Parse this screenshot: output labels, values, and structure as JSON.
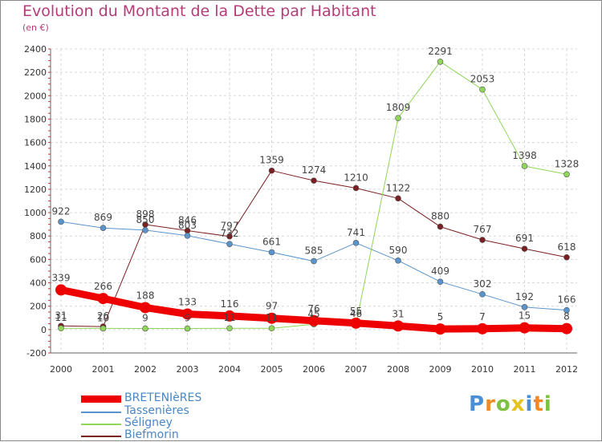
{
  "title": "Evolution du Montant de la Dette par Habitant",
  "subtitle": "(en €)",
  "logo": {
    "text": "Proxiti",
    "letters": [
      "P",
      "r",
      "o",
      "x",
      "i",
      "t",
      "i"
    ],
    "colors": [
      "#4a8fd6",
      "#f08a24",
      "#7cc142",
      "#e6c21e",
      "#4a8fd6",
      "#f08a24",
      "#7cc142"
    ]
  },
  "chart_data": {
    "type": "line",
    "categories": [
      "2000",
      "2001",
      "2002",
      "2003",
      "2004",
      "2005",
      "2006",
      "2007",
      "2008",
      "2009",
      "2010",
      "2011",
      "2012"
    ],
    "ylim": [
      -200,
      2400
    ],
    "yticks": [
      -200,
      0,
      200,
      400,
      600,
      800,
      1000,
      1200,
      1400,
      1600,
      1800,
      2000,
      2200,
      2400
    ],
    "grid": true,
    "series": [
      {
        "name": "Biefmorin",
        "color": "#7a1f22",
        "width": 1,
        "values": [
          31,
          26,
          898,
          846,
          797,
          1359,
          1274,
          1210,
          1122,
          880,
          767,
          691,
          618
        ],
        "labels": [
          "31",
          "26",
          "898",
          "846",
          "797",
          "1359",
          "1274",
          "1210",
          "1122",
          "880",
          "767",
          "691",
          "618"
        ]
      },
      {
        "name": "Tassenières",
        "color": "#5a94cc",
        "width": 1,
        "values": [
          922,
          869,
          850,
          803,
          732,
          661,
          585,
          741,
          590,
          409,
          302,
          192,
          166
        ],
        "labels": [
          "922",
          "869",
          "850",
          "803",
          "732",
          "661",
          "585",
          "741",
          "590",
          "409",
          "302",
          "192",
          "166"
        ]
      },
      {
        "name": "Séligney",
        "color": "#8fd65a",
        "width": 1,
        "values": [
          11,
          10,
          9,
          9,
          11,
          11,
          45,
          46,
          1809,
          2291,
          2053,
          1398,
          1328
        ],
        "labels": [
          "11",
          "10",
          "9",
          "9",
          "11",
          "11",
          "45",
          "46",
          "1809",
          "2291",
          "2053",
          "1398",
          "1328"
        ]
      },
      {
        "name": "BRETENIèRES",
        "color": "#ee0000",
        "width": 9,
        "values": [
          339,
          266,
          188,
          133,
          116,
          97,
          76,
          55,
          31,
          5,
          7,
          15,
          8
        ],
        "labels": [
          "339",
          "266",
          "188",
          "133",
          "116",
          "97",
          "76",
          "55",
          "31",
          "5",
          "7",
          "15",
          "8"
        ]
      }
    ],
    "legend": [
      {
        "name": "BRETENIèRES",
        "color": "#ee0000",
        "width": 9
      },
      {
        "name": "Tassenières",
        "color": "#5a94cc",
        "width": 2
      },
      {
        "name": "Séligney",
        "color": "#8fd65a",
        "width": 2
      },
      {
        "name": "Biefmorin",
        "color": "#7a1f22",
        "width": 2
      }
    ]
  }
}
